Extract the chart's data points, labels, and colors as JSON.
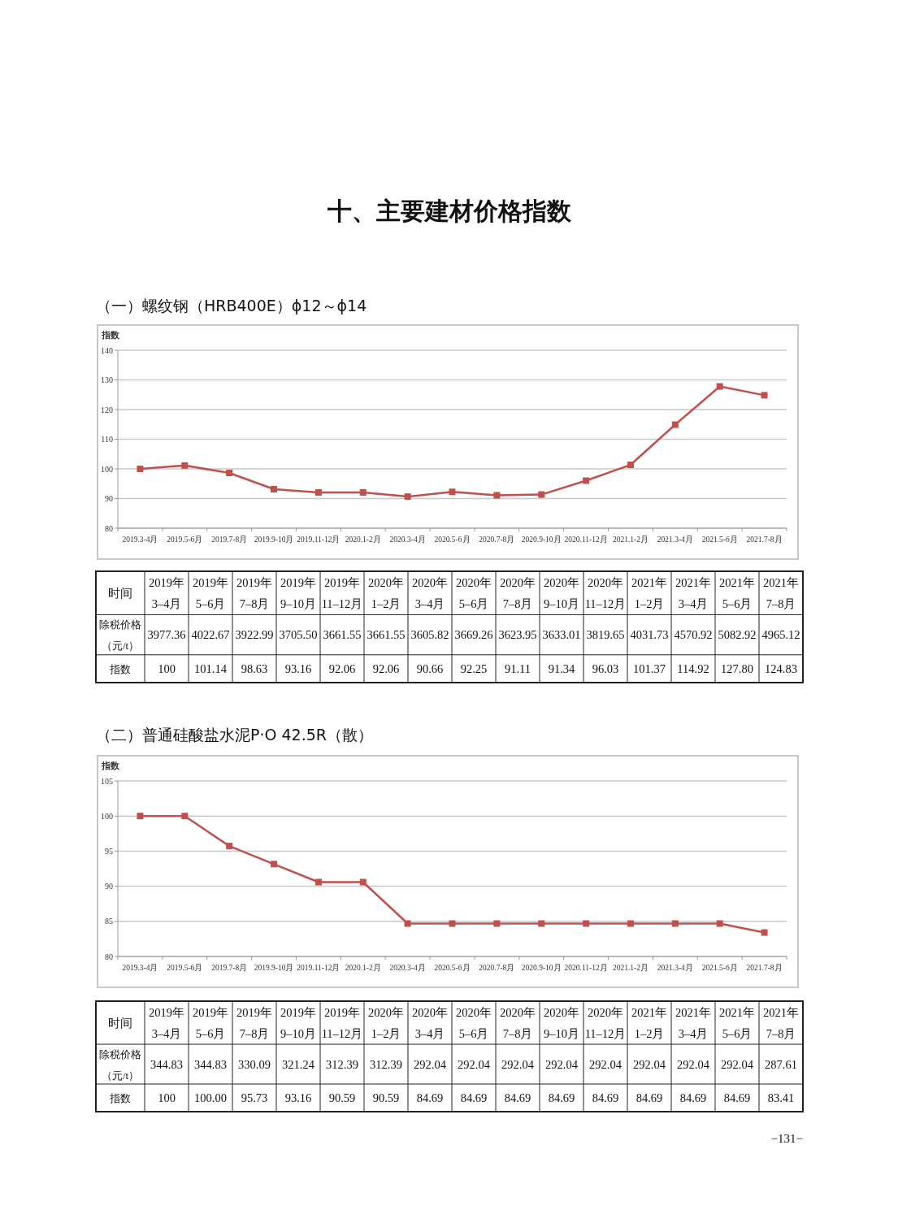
{
  "chart_data": [
    {
      "type": "line",
      "title": "十、主要建材价格指数",
      "subtitle": "（一）螺纹钢（HRB400E）ϕ12～ϕ14",
      "ylabel": "指数",
      "categories": [
        "2019.3-4月",
        "2019.5-6月",
        "2019.7-8月",
        "2019.9-10月",
        "2019.11-12月",
        "2020.1-2月",
        "2020.3-4月",
        "2020.5-6月",
        "2020.7-8月",
        "2020.9-10月",
        "2020.11-12月",
        "2021.1-2月",
        "2021.3-4月",
        "2021.5-6月",
        "2021.7-8月"
      ],
      "series": [
        {
          "color": "#c0504d",
          "values": [
            100,
            101.14,
            98.63,
            93.16,
            92.06,
            92.06,
            90.66,
            92.25,
            91.11,
            91.34,
            96.03,
            101.37,
            114.92,
            127.8,
            124.83
          ]
        }
      ],
      "ylim": [
        80,
        140
      ],
      "yticks": [
        80,
        90,
        100,
        110,
        120,
        130,
        140
      ],
      "grid": "y",
      "marker": "square"
    },
    {
      "type": "other",
      "xlabel": "时间",
      "categories": [
        "2019年\n3–4月",
        "2019年\n5–6月",
        "2019年\n7–8月",
        "2019年\n9–10月",
        "2019年\n11–12月",
        "2020年\n1–2月",
        "2020年\n3–4月",
        "2020年\n5–6月",
        "2020年\n7–8月",
        "2020年\n9–10月",
        "2020年\n11–12月",
        "2021年\n1–2月",
        "2021年\n3–4月",
        "2021年\n5–6月",
        "2021年\n7–8月"
      ],
      "series": [
        {
          "name": "除税价格（元/t）",
          "values": [
            3977.36,
            4022.67,
            3922.99,
            3705.5,
            3661.55,
            3661.55,
            3605.82,
            3669.26,
            3623.95,
            3633.01,
            3819.65,
            4031.73,
            4570.92,
            5082.92,
            4965.12
          ],
          "value_labels": [
            "3977.36",
            "4022.67",
            "3922.99",
            "3705.50",
            "3661.55",
            "3661.55",
            "3605.82",
            "3669.26",
            "3623.95",
            "3633.01",
            "3819.65",
            "4031.73",
            "4570.92",
            "5082.92",
            "4965.12"
          ]
        },
        {
          "name": "指数",
          "values": [
            100,
            101.14,
            98.63,
            93.16,
            92.06,
            92.06,
            90.66,
            92.25,
            91.11,
            91.34,
            96.03,
            101.37,
            114.92,
            127.8,
            124.83
          ],
          "value_labels": [
            "100",
            "101.14",
            "98.63",
            "93.16",
            "92.06",
            "92.06",
            "90.66",
            "92.25",
            "91.11",
            "91.34",
            "96.03",
            "101.37",
            "114.92",
            "127.80",
            "124.83"
          ]
        }
      ]
    },
    {
      "type": "line",
      "title": "（二）普通硅酸盐水泥P·O 42.5R（散）",
      "ylabel": "指数",
      "categories": [
        "2019.3-4月",
        "2019.5-6月",
        "2019.7-8月",
        "2019.9-10月",
        "2019.11-12月",
        "2020.1-2月",
        "2020.3-4月",
        "2020.5-6月",
        "2020.7-8月",
        "2020.9-10月",
        "2020.11-12月",
        "2021.1-2月",
        "2021.3-4月",
        "2021.5-6月",
        "2021.7-8月"
      ],
      "series": [
        {
          "color": "#c0504d",
          "values": [
            100,
            100.0,
            95.73,
            93.16,
            90.59,
            90.59,
            84.69,
            84.69,
            84.69,
            84.69,
            84.69,
            84.69,
            84.69,
            84.69,
            83.41
          ]
        }
      ],
      "ylim": [
        80,
        105
      ],
      "yticks": [
        80,
        85,
        90,
        95,
        100,
        105
      ],
      "grid": "y",
      "marker": "square"
    },
    {
      "type": "other",
      "xlabel": "时间",
      "categories": [
        "2019年\n3–4月",
        "2019年\n5–6月",
        "2019年\n7–8月",
        "2019年\n9–10月",
        "2019年\n11–12月",
        "2020年\n1–2月",
        "2020年\n3–4月",
        "2020年\n5–6月",
        "2020年\n7–8月",
        "2020年\n9–10月",
        "2020年\n11–12月",
        "2021年\n1–2月",
        "2021年\n3–4月",
        "2021年\n5–6月",
        "2021年\n7–8月"
      ],
      "series": [
        {
          "name": "除税价格（元/t）",
          "values": [
            344.83,
            344.83,
            330.09,
            321.24,
            312.39,
            312.39,
            292.04,
            292.04,
            292.04,
            292.04,
            292.04,
            292.04,
            292.04,
            292.04,
            287.61
          ],
          "value_labels": [
            "344.83",
            "344.83",
            "330.09",
            "321.24",
            "312.39",
            "312.39",
            "292.04",
            "292.04",
            "292.04",
            "292.04",
            "292.04",
            "292.04",
            "292.04",
            "292.04",
            "287.61"
          ]
        },
        {
          "name": "指数",
          "values": [
            100,
            100.0,
            95.73,
            93.16,
            90.59,
            90.59,
            84.69,
            84.69,
            84.69,
            84.69,
            84.69,
            84.69,
            84.69,
            84.69,
            83.41
          ],
          "value_labels": [
            "100",
            "100.00",
            "95.73",
            "93.16",
            "90.59",
            "90.59",
            "84.69",
            "84.69",
            "84.69",
            "84.69",
            "84.69",
            "84.69",
            "84.69",
            "84.69",
            "83.41"
          ]
        }
      ],
      "annotations": [
        "−131−"
      ]
    }
  ]
}
